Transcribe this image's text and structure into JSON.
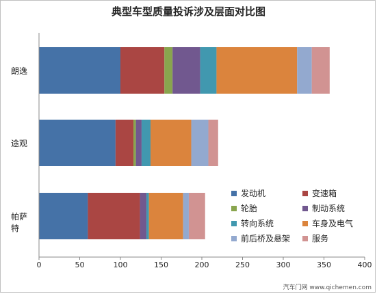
{
  "chart_data": {
    "type": "bar",
    "orientation": "horizontal",
    "stacked": true,
    "title": "典型车型质量投诉涉及层面对比图",
    "categories": [
      "朗逸",
      "途观",
      "帕萨特"
    ],
    "series": [
      {
        "name": "发动机",
        "color": "#4572A7",
        "values": [
          100,
          94,
          60
        ]
      },
      {
        "name": "变速箱",
        "color": "#AA4643",
        "values": [
          54,
          22,
          64
        ]
      },
      {
        "name": "轮胎",
        "color": "#89A54E",
        "values": [
          10,
          3,
          0
        ]
      },
      {
        "name": "制动系统",
        "color": "#71588F",
        "values": [
          34,
          7,
          8
        ]
      },
      {
        "name": "转向系统",
        "color": "#4198AF",
        "values": [
          20,
          11,
          3
        ]
      },
      {
        "name": "车身及电气",
        "color": "#DB843D",
        "values": [
          99,
          50,
          42
        ]
      },
      {
        "name": "前后桥及悬架",
        "color": "#93A9CF",
        "values": [
          18,
          21,
          7
        ]
      },
      {
        "name": "服务",
        "color": "#D19392",
        "values": [
          22,
          12,
          20
        ]
      }
    ],
    "xlim": [
      0,
      400
    ],
    "xticks": [
      "0",
      "50",
      "100",
      "150",
      "200",
      "250",
      "300",
      "350",
      "400"
    ],
    "grid": false,
    "legend_position": "bottom-right inside plot"
  },
  "watermark": "汽车门网 www.qichemen.com"
}
